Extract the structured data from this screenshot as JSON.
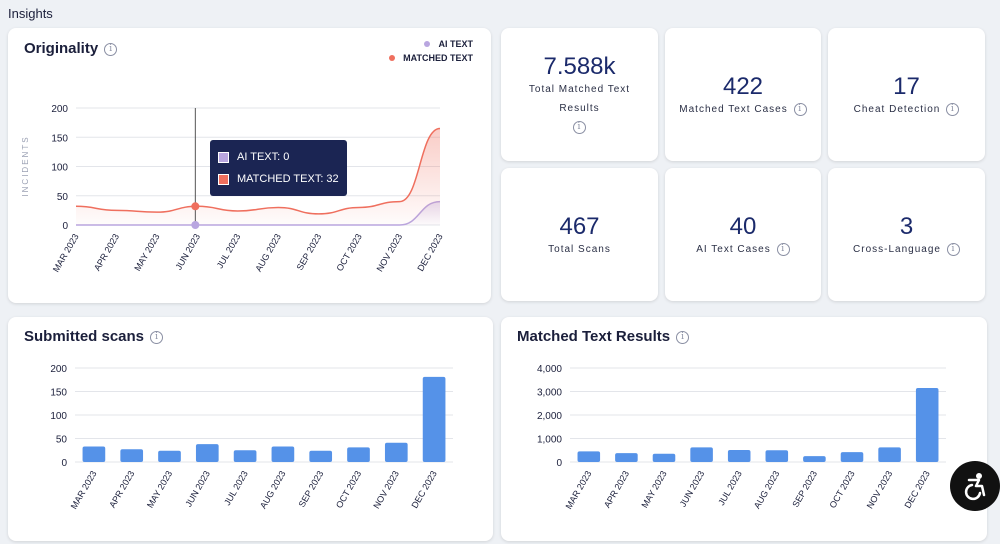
{
  "page": {
    "title": "Insights"
  },
  "originality": {
    "title": "Originality",
    "legend": [
      {
        "label": "AI TEXT",
        "color": "#b9a6e0"
      },
      {
        "label": "MATCHED TEXT",
        "color": "#ef6f5e"
      }
    ],
    "tooltip": {
      "ai_text": "AI TEXT: 0",
      "matched_text": "MATCHED TEXT: 32"
    }
  },
  "stats": [
    {
      "value": "7.588k",
      "label": "Total Matched Text Results"
    },
    {
      "value": "422",
      "label": "Matched Text Cases"
    },
    {
      "value": "17",
      "label": "Cheat Detection"
    },
    {
      "value": "467",
      "label": "Total Scans"
    },
    {
      "value": "40",
      "label": "AI Text Cases"
    },
    {
      "value": "3",
      "label": "Cross-Language"
    }
  ],
  "submitted": {
    "title": "Submitted scans"
  },
  "matched_results": {
    "title": "Matched Text Results"
  },
  "accessibility": {
    "icon": "accessibility-icon"
  },
  "chart_data": [
    {
      "type": "line",
      "title": "Originality",
      "ylabel": "INCIDENTS",
      "categories": [
        "MAR 2023",
        "APR 2023",
        "MAY 2023",
        "JUN 2023",
        "JUL 2023",
        "AUG 2023",
        "SEP 2023",
        "OCT 2023",
        "NOV 2023",
        "DEC 2023"
      ],
      "yticks": [
        "0",
        "50",
        "100",
        "150",
        "200"
      ],
      "ylim": [
        0,
        200
      ],
      "series": [
        {
          "name": "AI TEXT",
          "color": "#b9a6e0",
          "values": [
            0,
            0,
            0,
            0,
            0,
            0,
            0,
            0,
            0,
            40
          ]
        },
        {
          "name": "MATCHED TEXT",
          "color": "#ef6f5e",
          "values": [
            32,
            25,
            22,
            32,
            24,
            30,
            19,
            30,
            40,
            165
          ]
        }
      ]
    },
    {
      "type": "bar",
      "title": "Submitted scans",
      "categories": [
        "MAR 2023",
        "APR 2023",
        "MAY 2023",
        "JUN 2023",
        "JUL 2023",
        "AUG 2023",
        "SEP 2023",
        "OCT 2023",
        "NOV 2023",
        "DEC 2023"
      ],
      "yticks": [
        "0",
        "50",
        "100",
        "150",
        "200"
      ],
      "ylim": [
        0,
        200
      ],
      "color": "#5592e8",
      "values": [
        33,
        27,
        24,
        38,
        25,
        33,
        24,
        31,
        41,
        181
      ]
    },
    {
      "type": "bar",
      "title": "Matched Text Results",
      "categories": [
        "MAR 2023",
        "APR 2023",
        "MAY 2023",
        "JUN 2023",
        "JUL 2023",
        "AUG 2023",
        "SEP 2023",
        "OCT 2023",
        "NOV 2023",
        "DEC 2023"
      ],
      "yticks": [
        "0",
        "1,000",
        "2,000",
        "3,000",
        "4,000"
      ],
      "ylim": [
        0,
        4000
      ],
      "color": "#5592e8",
      "values": [
        450,
        380,
        350,
        620,
        510,
        500,
        250,
        420,
        620,
        3150
      ]
    }
  ]
}
